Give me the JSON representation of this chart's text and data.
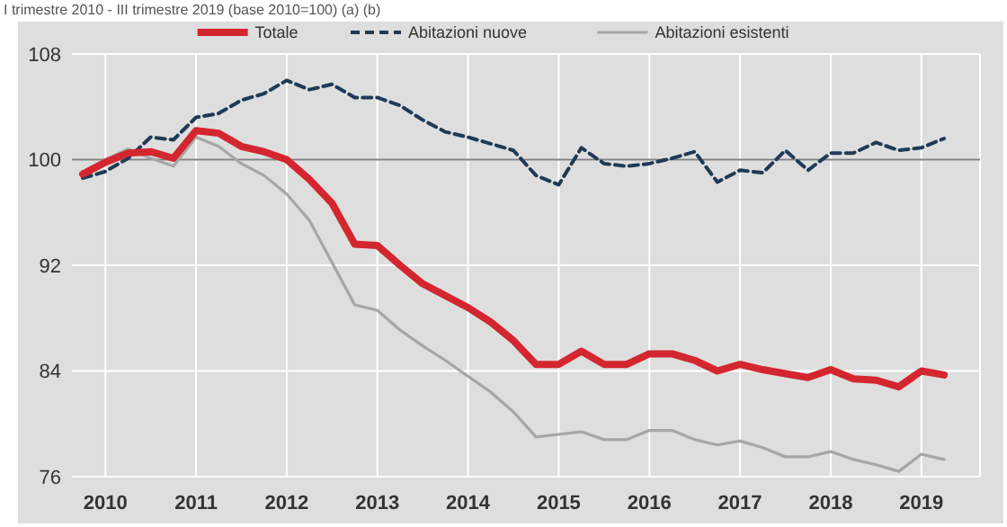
{
  "chart_data": {
    "type": "line",
    "subtitle": "I trimestre 2010 - III trimestre 2019 (base 2010=100) (a) (b)",
    "categories": [
      null,
      "2010",
      null,
      null,
      null,
      "2011",
      null,
      null,
      null,
      "2012",
      null,
      null,
      null,
      "2013",
      null,
      null,
      null,
      "2014",
      null,
      null,
      null,
      "2015",
      null,
      null,
      null,
      "2016",
      null,
      null,
      null,
      "2017",
      null,
      null,
      null,
      "2018",
      null,
      null,
      null,
      "2019",
      null
    ],
    "series": [
      {
        "name": "Totale",
        "color": "#d3262f",
        "line_style": "solid",
        "values": [
          98.9,
          99.8,
          100.5,
          100.6,
          100.1,
          102.2,
          102.0,
          101.0,
          100.6,
          100.0,
          98.5,
          96.7,
          93.6,
          93.5,
          92.0,
          90.6,
          89.7,
          88.8,
          87.7,
          86.3,
          84.5,
          84.5,
          85.5,
          84.5,
          84.5,
          85.3,
          85.3,
          84.8,
          84.0,
          84.5,
          84.1,
          83.8,
          83.5,
          84.1,
          83.4,
          83.3,
          82.8,
          84.0,
          83.7
        ]
      },
      {
        "name": "Abitazioni nuove",
        "color": "#1f3a56",
        "line_style": "dashed",
        "values": [
          98.6,
          99.1,
          100.1,
          101.7,
          101.5,
          103.2,
          103.5,
          104.5,
          105.0,
          106.0,
          105.3,
          105.7,
          104.7,
          104.7,
          104.1,
          103.0,
          102.1,
          101.7,
          101.2,
          100.7,
          98.8,
          98.1,
          100.9,
          99.7,
          99.5,
          99.7,
          100.1,
          100.6,
          98.3,
          99.2,
          99.0,
          100.7,
          99.2,
          100.5,
          100.5,
          101.3,
          100.7,
          100.9,
          101.6
        ]
      },
      {
        "name": "Abitazioni esistenti",
        "color": "#a6a6a6",
        "line_style": "solid",
        "values": [
          99.0,
          100.0,
          100.8,
          100.1,
          99.5,
          101.7,
          101.0,
          99.7,
          98.8,
          97.4,
          95.4,
          92.2,
          89.0,
          88.6,
          87.1,
          85.9,
          84.8,
          83.6,
          82.4,
          80.9,
          79.0,
          79.2,
          79.4,
          78.8,
          78.8,
          79.5,
          79.5,
          78.8,
          78.4,
          78.7,
          78.2,
          77.5,
          77.5,
          77.9,
          77.3,
          76.9,
          76.4,
          77.7,
          77.3
        ]
      }
    ],
    "ylim": [
      76,
      108
    ],
    "yticks": [
      76,
      84,
      92,
      100,
      108
    ],
    "grid": true,
    "legend": "top",
    "ref_lines": [
      {
        "axis": "y",
        "value": 100,
        "color": "#808080"
      }
    ]
  }
}
